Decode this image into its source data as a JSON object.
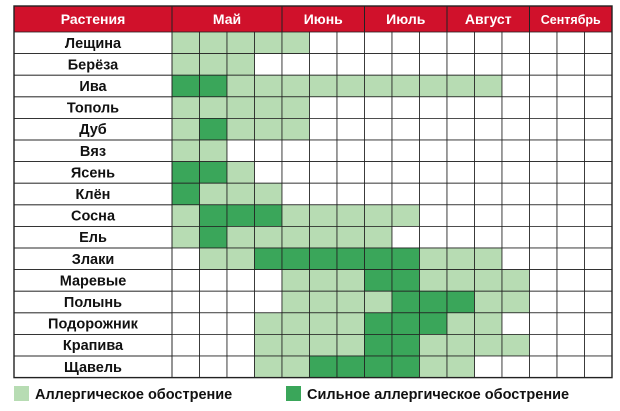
{
  "colors": {
    "header": "#d0112b",
    "light": "#b7dcb3",
    "strong": "#3aa65a",
    "grid": "#222222",
    "empty": "#ffffff"
  },
  "chart_data": {
    "type": "table",
    "header_label": "Растения",
    "months": [
      {
        "label": "Май",
        "cols": 4
      },
      {
        "label": "Июнь",
        "cols": 3
      },
      {
        "label": "Июль",
        "cols": 3
      },
      {
        "label": "Август",
        "cols": 3
      },
      {
        "label": "Сентябрь",
        "cols": 3
      }
    ],
    "levels": {
      "0": "none",
      "1": "Аллергическое обострение",
      "2": "Сильное аллергическое обострение"
    },
    "rows": [
      {
        "plant": "Лещина",
        "cells": [
          1,
          1,
          1,
          1,
          1,
          0,
          0,
          0,
          0,
          0,
          0,
          0,
          0,
          0,
          0,
          0
        ]
      },
      {
        "plant": "Берёза",
        "cells": [
          1,
          1,
          1,
          0,
          0,
          0,
          0,
          0,
          0,
          0,
          0,
          0,
          0,
          0,
          0,
          0
        ]
      },
      {
        "plant": "Ива",
        "cells": [
          2,
          2,
          1,
          1,
          1,
          1,
          1,
          1,
          1,
          1,
          1,
          1,
          0,
          0,
          0,
          0
        ]
      },
      {
        "plant": "Тополь",
        "cells": [
          1,
          1,
          1,
          1,
          1,
          0,
          0,
          0,
          0,
          0,
          0,
          0,
          0,
          0,
          0,
          0
        ]
      },
      {
        "plant": "Дуб",
        "cells": [
          1,
          2,
          1,
          1,
          1,
          0,
          0,
          0,
          0,
          0,
          0,
          0,
          0,
          0,
          0,
          0
        ]
      },
      {
        "plant": "Вяз",
        "cells": [
          1,
          1,
          0,
          0,
          0,
          0,
          0,
          0,
          0,
          0,
          0,
          0,
          0,
          0,
          0,
          0
        ]
      },
      {
        "plant": "Ясень",
        "cells": [
          2,
          2,
          1,
          0,
          0,
          0,
          0,
          0,
          0,
          0,
          0,
          0,
          0,
          0,
          0,
          0
        ]
      },
      {
        "plant": "Клён",
        "cells": [
          2,
          1,
          1,
          1,
          0,
          0,
          0,
          0,
          0,
          0,
          0,
          0,
          0,
          0,
          0,
          0
        ]
      },
      {
        "plant": "Сосна",
        "cells": [
          1,
          2,
          2,
          2,
          1,
          1,
          1,
          1,
          1,
          0,
          0,
          0,
          0,
          0,
          0,
          0
        ]
      },
      {
        "plant": "Ель",
        "cells": [
          1,
          2,
          1,
          1,
          1,
          1,
          1,
          1,
          0,
          0,
          0,
          0,
          0,
          0,
          0,
          0
        ]
      },
      {
        "plant": "Злаки",
        "cells": [
          0,
          1,
          1,
          2,
          2,
          2,
          2,
          2,
          2,
          1,
          1,
          1,
          0,
          0,
          0,
          0
        ]
      },
      {
        "plant": "Маревые",
        "cells": [
          0,
          0,
          0,
          0,
          1,
          1,
          1,
          2,
          2,
          1,
          1,
          1,
          1,
          0,
          0,
          0
        ]
      },
      {
        "plant": "Полынь",
        "cells": [
          0,
          0,
          0,
          0,
          1,
          1,
          1,
          1,
          2,
          2,
          2,
          1,
          1,
          0,
          0,
          0
        ]
      },
      {
        "plant": "Подорожник",
        "cells": [
          0,
          0,
          0,
          1,
          1,
          1,
          1,
          2,
          2,
          2,
          1,
          1,
          0,
          0,
          0,
          0
        ]
      },
      {
        "plant": "Крапива",
        "cells": [
          0,
          0,
          0,
          1,
          1,
          1,
          1,
          2,
          2,
          1,
          1,
          1,
          1,
          0,
          0,
          0
        ]
      },
      {
        "plant": "Щавель",
        "cells": [
          0,
          0,
          0,
          1,
          1,
          2,
          2,
          2,
          2,
          1,
          1,
          0,
          0,
          0,
          0,
          0
        ]
      }
    ],
    "legend": [
      {
        "label": "Аллергическое обострение",
        "level": 1
      },
      {
        "label": "Сильное аллергическое обострение",
        "level": 2
      }
    ]
  }
}
